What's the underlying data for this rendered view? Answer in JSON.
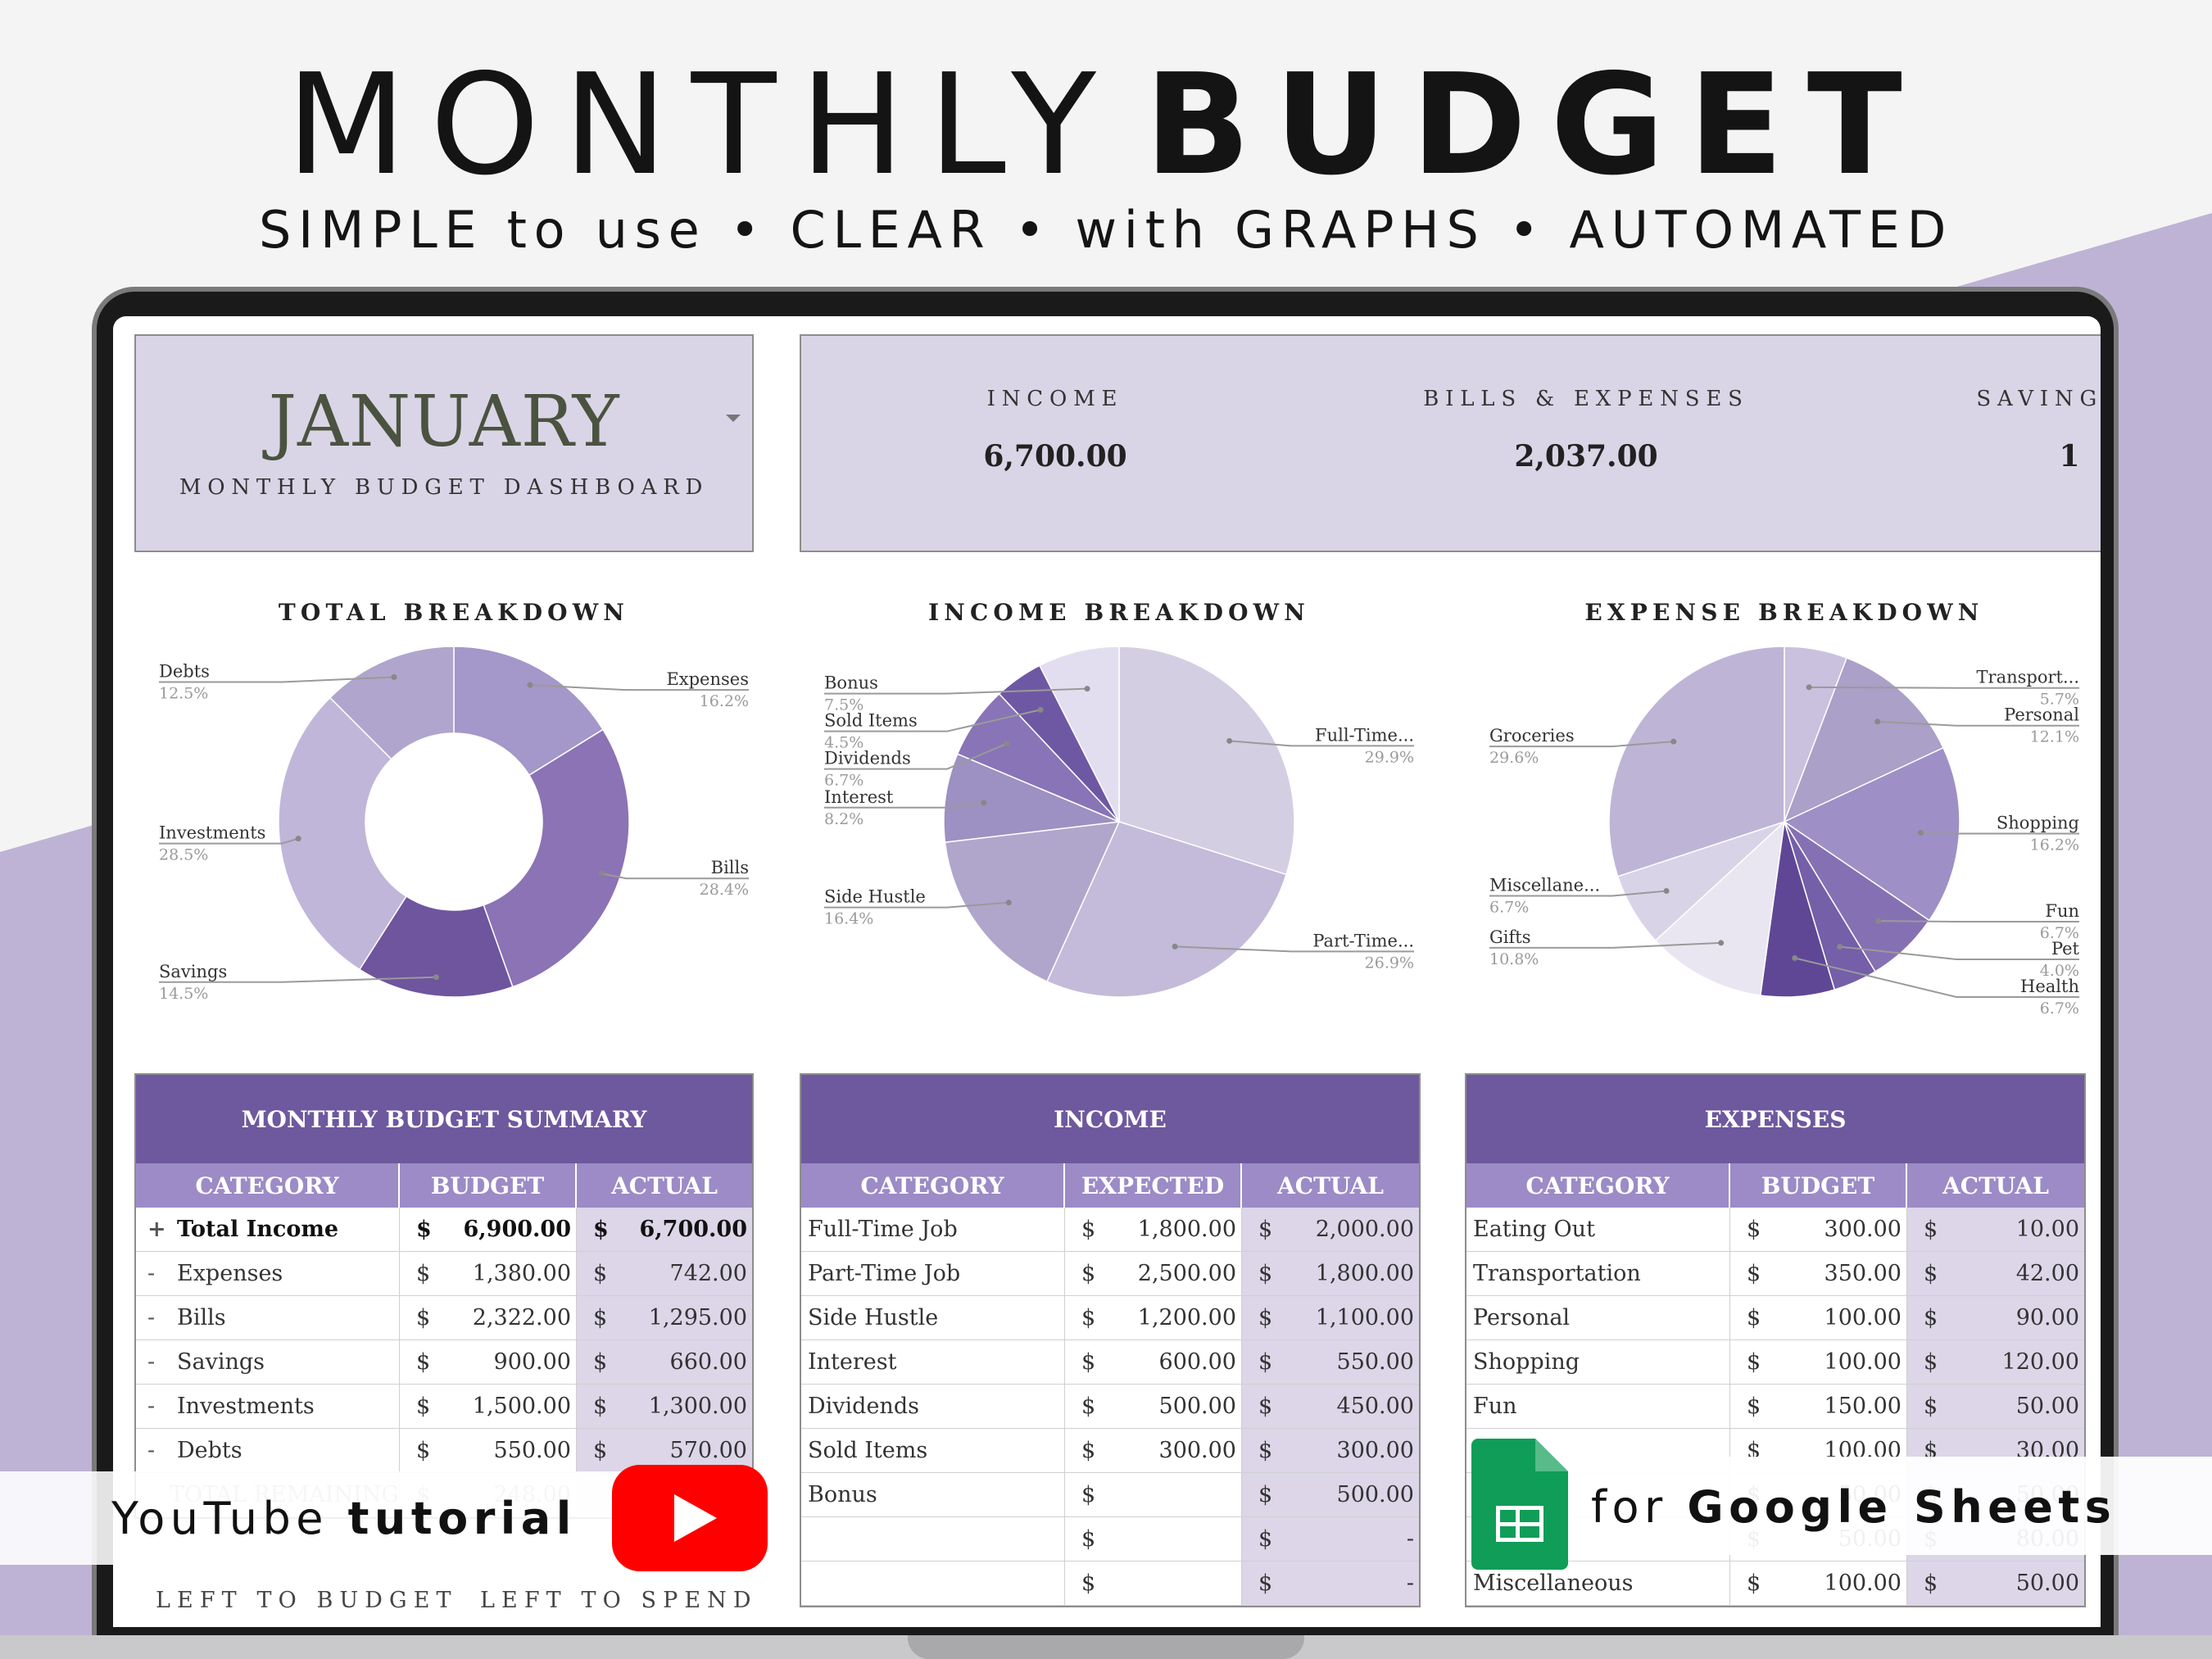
{
  "promo": {
    "title_light": "MONTHLY",
    "title_bold": "BUDGET",
    "subtitle": "SIMPLE to use • CLEAR • with GRAPHS • AUTOMATED"
  },
  "header": {
    "month": "JANUARY",
    "dashboard_label": "MONTHLY BUDGET DASHBOARD"
  },
  "totals": [
    {
      "label": "INCOME",
      "value": "6,700.00"
    },
    {
      "label": "BILLS & EXPENSES",
      "value": "2,037.00"
    },
    {
      "label": "SAVINGS &",
      "value": "1"
    }
  ],
  "colors": {
    "accent": "#6e589e",
    "header_row": "#9c8bc6",
    "panel": "#dad5e6"
  },
  "chart_data": [
    {
      "type": "pie",
      "title": "TOTAL BREAKDOWN",
      "donut": true,
      "categories": [
        "Expenses",
        "Bills",
        "Savings",
        "Investments",
        "Debts"
      ],
      "values": [
        16.2,
        28.4,
        14.5,
        28.5,
        12.5
      ],
      "labels": [
        "16.2%",
        "28.4%",
        "14.5%",
        "28.5%",
        "12.5%"
      ],
      "colors": [
        "#a497c9",
        "#8b73b5",
        "#6e559e",
        "#c0b6d9",
        "#b0a5cc"
      ],
      "label_side": [
        "right",
        "right",
        "left",
        "left",
        "left"
      ]
    },
    {
      "type": "pie",
      "title": "INCOME BREAKDOWN",
      "donut": false,
      "categories": [
        "Full-Time...",
        "Part-Time...",
        "Side Hustle",
        "Interest",
        "Dividends",
        "Sold Items",
        "Bonus"
      ],
      "values": [
        29.9,
        26.9,
        16.4,
        8.2,
        6.7,
        4.5,
        7.5
      ],
      "labels": [
        "29.9%",
        "26.9%",
        "16.4%",
        "8.2%",
        "6.7%",
        "4.5%",
        "7.5%"
      ],
      "colors": [
        "#d4cee3",
        "#c3bbd9",
        "#b0a6cc",
        "#9d90c2",
        "#8874b6",
        "#6e58a3",
        "#e2def0"
      ],
      "label_side": [
        "right",
        "right",
        "left",
        "left",
        "left",
        "left",
        "left"
      ]
    },
    {
      "type": "pie",
      "title": "EXPENSE BREAKDOWN",
      "donut": false,
      "categories": [
        "Transport...",
        "Personal",
        "Shopping",
        "Fun",
        "Pet",
        "Health",
        "Gifts",
        "Miscellane...",
        "Groceries"
      ],
      "values": [
        5.7,
        12.1,
        16.2,
        6.7,
        4.0,
        6.7,
        10.8,
        6.7,
        29.6
      ],
      "labels": [
        "5.7%",
        "12.1%",
        "16.2%",
        "6.7%",
        "4.0%",
        "6.7%",
        "10.8%",
        "6.7%",
        "29.6%"
      ],
      "colors": [
        "#c9c1de",
        "#aaa0c8",
        "#9e90c6",
        "#8670b4",
        "#745fa8",
        "#5f4795",
        "#e9e6f1",
        "#d9d3e7",
        "#beb5d6"
      ],
      "label_side": [
        "right",
        "right",
        "right",
        "right",
        "right",
        "right",
        "left",
        "left",
        "left"
      ]
    }
  ],
  "summary": {
    "title": "MONTHLY BUDGET SUMMARY",
    "headers": [
      "CATEGORY",
      "BUDGET",
      "ACTUAL"
    ],
    "rows": [
      {
        "sign": "+",
        "category": "Total Income",
        "cur1": "$",
        "budget": "6,900.00",
        "cur2": "$",
        "actual": "6,700.00"
      },
      {
        "sign": "-",
        "category": "Expenses",
        "cur1": "$",
        "budget": "1,380.00",
        "cur2": "$",
        "actual": "742.00"
      },
      {
        "sign": "-",
        "category": "Bills",
        "cur1": "$",
        "budget": "2,322.00",
        "cur2": "$",
        "actual": "1,295.00"
      },
      {
        "sign": "-",
        "category": "Savings",
        "cur1": "$",
        "budget": "900.00",
        "cur2": "$",
        "actual": "660.00"
      },
      {
        "sign": "-",
        "category": "Investments",
        "cur1": "$",
        "budget": "1,500.00",
        "cur2": "$",
        "actual": "1,300.00"
      },
      {
        "sign": "-",
        "category": "Debts",
        "cur1": "$",
        "budget": "550.00",
        "cur2": "$",
        "actual": "570.00"
      },
      {
        "sign": "",
        "category": "TOTAL REMAINING",
        "cur1": "$",
        "budget": "248.00",
        "cur2": "",
        "actual": ""
      }
    ],
    "footer": [
      "LEFT TO BUDGET",
      "LEFT TO SPEND"
    ]
  },
  "income": {
    "title": "INCOME",
    "headers": [
      "CATEGORY",
      "EXPECTED",
      "ACTUAL"
    ],
    "rows": [
      {
        "category": "Full-Time Job",
        "cur1": "$",
        "expected": "1,800.00",
        "cur2": "$",
        "actual": "2,000.00"
      },
      {
        "category": "Part-Time Job",
        "cur1": "$",
        "expected": "2,500.00",
        "cur2": "$",
        "actual": "1,800.00"
      },
      {
        "category": "Side Hustle",
        "cur1": "$",
        "expected": "1,200.00",
        "cur2": "$",
        "actual": "1,100.00"
      },
      {
        "category": "Interest",
        "cur1": "$",
        "expected": "600.00",
        "cur2": "$",
        "actual": "550.00"
      },
      {
        "category": "Dividends",
        "cur1": "$",
        "expected": "500.00",
        "cur2": "$",
        "actual": "450.00"
      },
      {
        "category": "Sold Items",
        "cur1": "$",
        "expected": "300.00",
        "cur2": "$",
        "actual": "300.00"
      },
      {
        "category": "Bonus",
        "cur1": "$",
        "expected": "",
        "cur2": "$",
        "actual": "500.00"
      },
      {
        "category": "",
        "cur1": "$",
        "expected": "",
        "cur2": "$",
        "actual": "-"
      },
      {
        "category": "",
        "cur1": "$",
        "expected": "",
        "cur2": "$",
        "actual": "-"
      }
    ]
  },
  "expenses": {
    "title": "EXPENSES",
    "headers": [
      "CATEGORY",
      "BUDGET",
      "ACTUAL"
    ],
    "rows": [
      {
        "category": "Eating Out",
        "cur1": "$",
        "budget": "300.00",
        "cur2": "$",
        "actual": "10.00"
      },
      {
        "category": "Transportation",
        "cur1": "$",
        "budget": "350.00",
        "cur2": "$",
        "actual": "42.00"
      },
      {
        "category": "Personal",
        "cur1": "$",
        "budget": "100.00",
        "cur2": "$",
        "actual": "90.00"
      },
      {
        "category": "Shopping",
        "cur1": "$",
        "budget": "100.00",
        "cur2": "$",
        "actual": "120.00"
      },
      {
        "category": "Fun",
        "cur1": "$",
        "budget": "150.00",
        "cur2": "$",
        "actual": "50.00"
      },
      {
        "category": "",
        "cur1": "$",
        "budget": "100.00",
        "cur2": "$",
        "actual": "30.00"
      },
      {
        "category": "",
        "cur1": "$",
        "budget": "50.00",
        "cur2": "$",
        "actual": "50.00"
      },
      {
        "category": "",
        "cur1": "$",
        "budget": "50.00",
        "cur2": "$",
        "actual": "80.00"
      },
      {
        "category": "Miscellaneous",
        "cur1": "$",
        "budget": "100.00",
        "cur2": "$",
        "actual": "50.00"
      }
    ]
  },
  "overlays": {
    "youtube_text": "YouTube",
    "youtube_bold": "tutorial",
    "youtube_icon": "youtube-play-icon",
    "sheets_text": "for",
    "sheets_bold": "Google Sheets",
    "sheets_icon": "google-sheets-icon"
  }
}
